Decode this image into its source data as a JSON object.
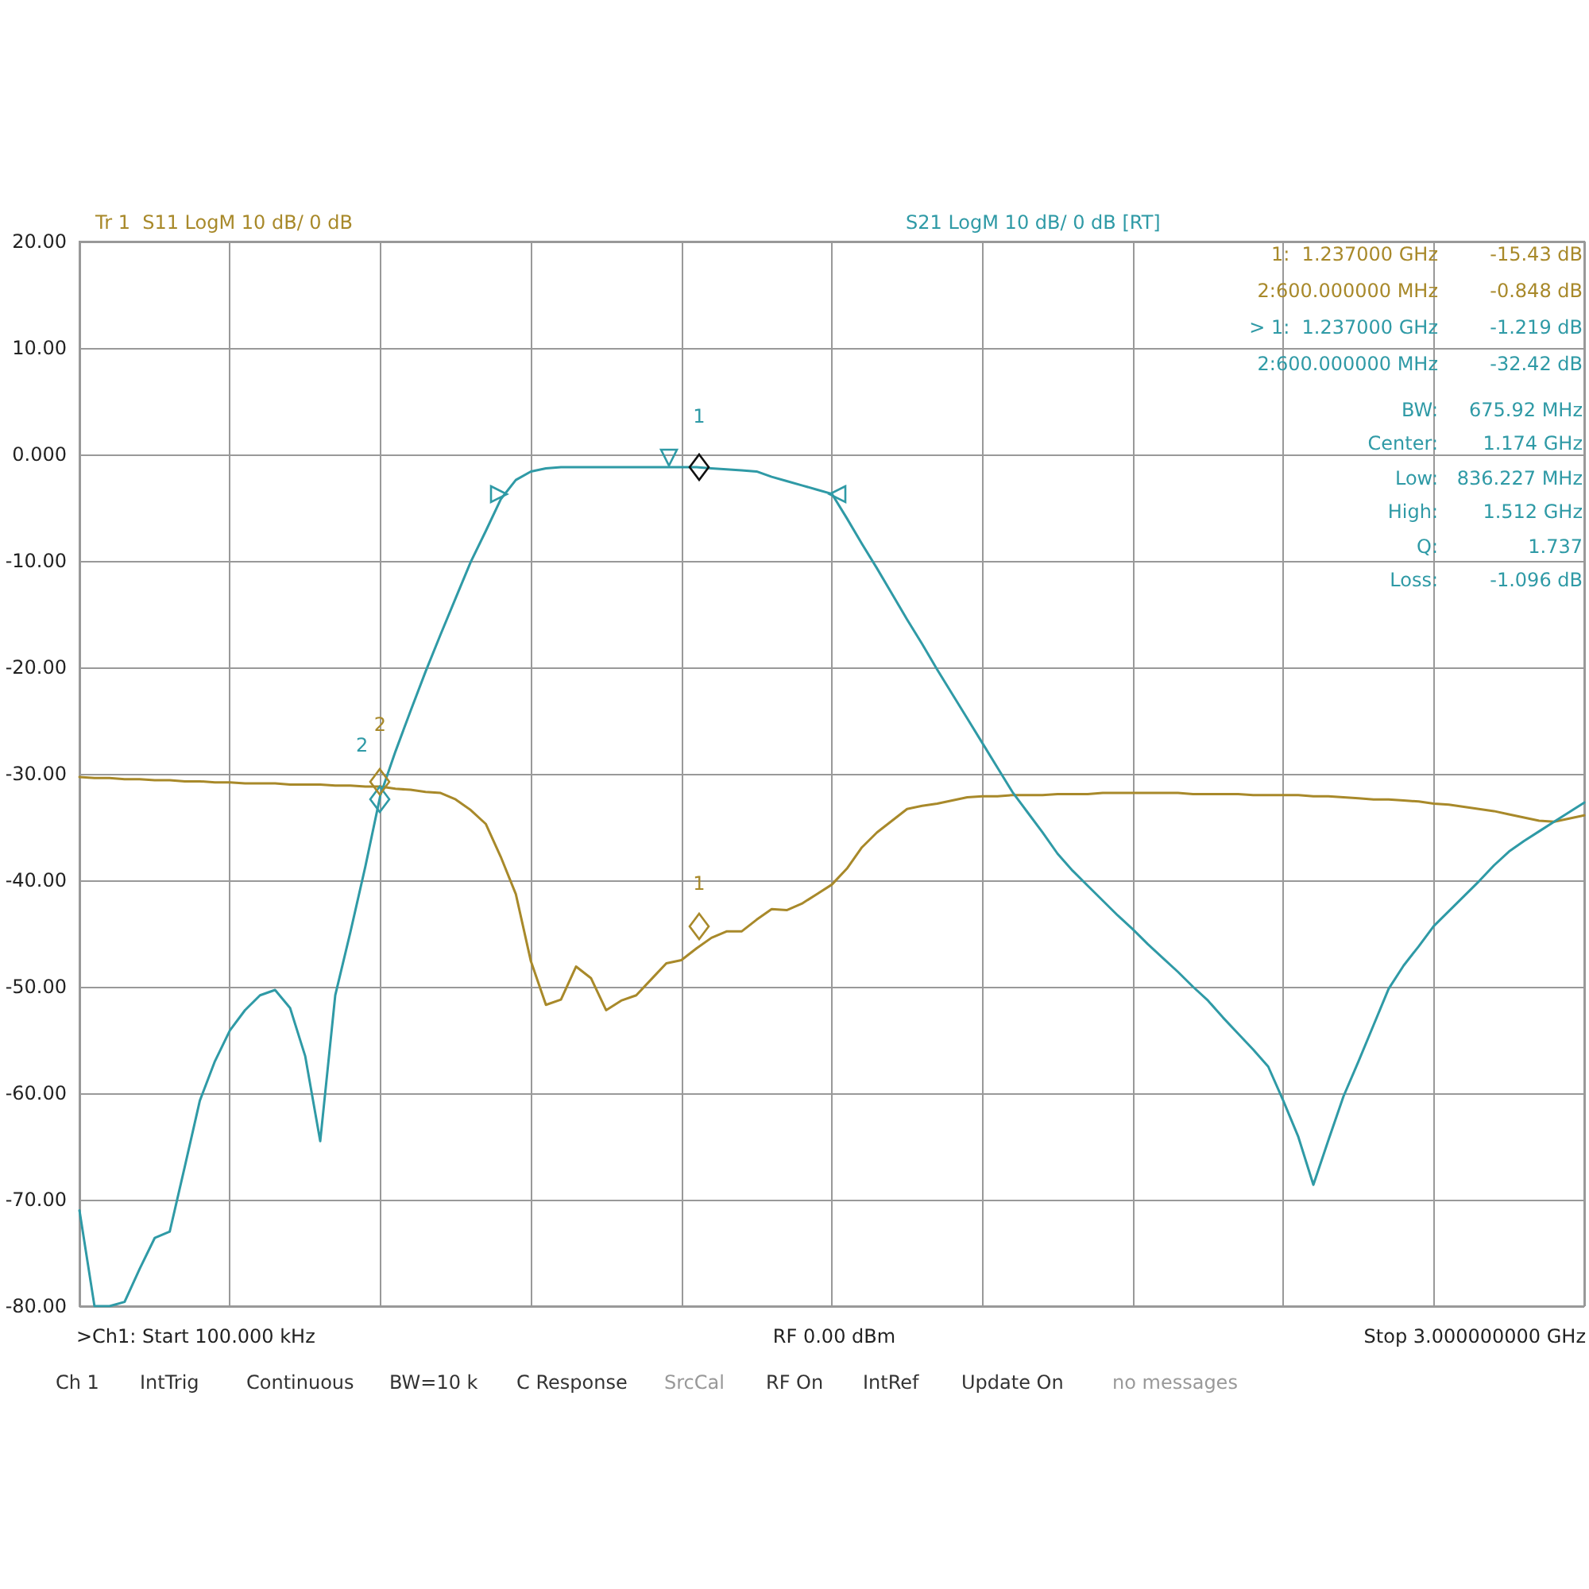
{
  "chart_data": {
    "type": "line",
    "categories": [
      null,
      null,
      null,
      null,
      null,
      null,
      null,
      null,
      null,
      null,
      null,
      null,
      null,
      null,
      null,
      null,
      null,
      null,
      null,
      null,
      null,
      null,
      null,
      null,
      null,
      null,
      null,
      null,
      null,
      null,
      null,
      null,
      null,
      null,
      null,
      null,
      null,
      null,
      null,
      null,
      null,
      null,
      null,
      null,
      null,
      null,
      null,
      null,
      null,
      null,
      null,
      null,
      null,
      null,
      null,
      null,
      null,
      null,
      null,
      null,
      null,
      null,
      null,
      null,
      null,
      null,
      null,
      null,
      null,
      null,
      null,
      null,
      null,
      null,
      null,
      null,
      null,
      null,
      null,
      null,
      null,
      null,
      null,
      null,
      null,
      null,
      null,
      null,
      null,
      null,
      null,
      null,
      null,
      null,
      null,
      null,
      null,
      null,
      null,
      null,
      null
    ],
    "series": [
      {
        "name": "Tr 1  S11 LogM 10 dB/ 0 dB",
        "color": "#a8892a",
        "values": [
          -30.3,
          -30.4,
          -30.4,
          -30.5,
          -30.5,
          -30.6,
          -30.6,
          -30.7,
          -30.7,
          -30.8,
          -30.8,
          -30.9,
          -30.9,
          -30.9,
          -31.0,
          -31.0,
          -31.0,
          -31.1,
          -31.1,
          -31.2,
          -31.2,
          -31.4,
          -31.5,
          -31.7,
          -31.8,
          -32.4,
          -33.4,
          -34.7,
          -37.8,
          -41.3,
          -47.6,
          -51.7,
          -51.2,
          -48.1,
          -49.2,
          -52.2,
          -51.3,
          -50.8,
          -49.3,
          -47.8,
          -47.5,
          -46.4,
          -45.4,
          -44.8,
          -44.8,
          -43.7,
          -42.7,
          -42.8,
          -42.2,
          -41.3,
          -40.4,
          -38.9,
          -36.9,
          -35.5,
          -34.4,
          -33.3,
          -33.0,
          -32.8,
          -32.5,
          -32.2,
          -32.1,
          -32.1,
          -32.0,
          -32.0,
          -32.0,
          -31.9,
          -31.9,
          -31.9,
          -31.8,
          -31.8,
          -31.8,
          -31.8,
          -31.8,
          -31.8,
          -31.9,
          -31.9,
          -31.9,
          -31.9,
          -32.0,
          -32.0,
          -32.0,
          -32.0,
          -32.1,
          -32.1,
          -32.2,
          -32.3,
          -32.4,
          -32.4,
          -32.5,
          -32.6,
          -32.8,
          -32.9,
          -33.1,
          -33.3,
          -33.5,
          -33.8,
          -34.1,
          -34.4,
          -34.5,
          -34.2,
          -33.9
        ]
      },
      {
        "name": "S21 LogM 10 dB/ 0 dB [RT]",
        "color": "#2f9aa6",
        "values": [
          -71.0,
          -80.0,
          -80.0,
          -79.6,
          -76.5,
          -73.6,
          -73.0,
          -66.9,
          -60.7,
          -57.0,
          -54.1,
          -52.2,
          -50.8,
          -50.3,
          -52.0,
          -56.5,
          -64.5,
          -50.8,
          -44.9,
          -38.7,
          -32.0,
          -27.9,
          -24.1,
          -20.4,
          -16.9,
          -13.5,
          -10.1,
          -7.2,
          -4.2,
          -2.4,
          -1.6,
          -1.3,
          -1.2,
          -1.2,
          -1.2,
          -1.2,
          -1.2,
          -1.2,
          -1.2,
          -1.2,
          -1.2,
          -1.2,
          -1.3,
          -1.4,
          -1.5,
          -1.6,
          -2.1,
          -2.5,
          -2.9,
          -3.3,
          -3.7,
          -6.0,
          -8.4,
          -10.7,
          -13.1,
          -15.5,
          -17.8,
          -20.2,
          -22.5,
          -24.8,
          -27.1,
          -29.4,
          -31.7,
          -33.6,
          -35.5,
          -37.5,
          -39.1,
          -40.5,
          -41.9,
          -43.3,
          -44.6,
          -46.0,
          -47.3,
          -48.6,
          -50.0,
          -51.3,
          -52.9,
          -54.4,
          -55.9,
          -57.5,
          -60.7,
          -64.1,
          -68.6,
          -64.4,
          -60.3,
          -57.0,
          -53.6,
          -50.2,
          -48.0,
          -46.2,
          -44.3,
          -42.9,
          -41.5,
          -40.1,
          -38.6,
          -37.3,
          -36.3,
          -35.4,
          -34.5,
          -33.6,
          -32.7
        ]
      }
    ],
    "ylim": [
      -80,
      20
    ],
    "yticks": [
      {
        "value": -80,
        "label": "-80.00"
      },
      {
        "value": -70,
        "label": "-70.00"
      },
      {
        "value": -60,
        "label": "-60.00"
      },
      {
        "value": -50,
        "label": "-50.00"
      },
      {
        "value": -40,
        "label": "-40.00"
      },
      {
        "value": -30,
        "label": "-30.00"
      },
      {
        "value": -20,
        "label": "-20.00"
      },
      {
        "value": -10,
        "label": "-10.00"
      },
      {
        "value": 0,
        "label": "0.000"
      },
      {
        "value": 10,
        "label": "10.00"
      },
      {
        "value": 20,
        "label": "20.00"
      }
    ],
    "grid": true,
    "tick_labels": "y",
    "annotations": [
      "1:  1.237000 GHz\t-15.43 dB",
      "2:600.000000 MHz\t-0.848 dB",
      "> 1:  1.237000 GHz\t-1.219 dB",
      "2:600.000000 MHz\t-32.42 dB",
      "BW:\t675.92 MHz",
      "Center:\t1.174 GHz",
      "Low:\t836.227 MHz",
      "High:\t1.512 GHz",
      "Q:\t1.737",
      "Loss:\t-1.096 dB",
      "RF 0.00 dBm",
      ">Ch1: Start 100.000 kHz",
      "Stop 3.000000000 GHz",
      "Ch 1",
      "IntTrig",
      "Continuous",
      "BW=10 k",
      "C Response",
      "SrcCal",
      "RF On",
      "IntRef",
      "Update On",
      "no messages",
      "1",
      "2",
      "1",
      "2"
    ]
  }
}
